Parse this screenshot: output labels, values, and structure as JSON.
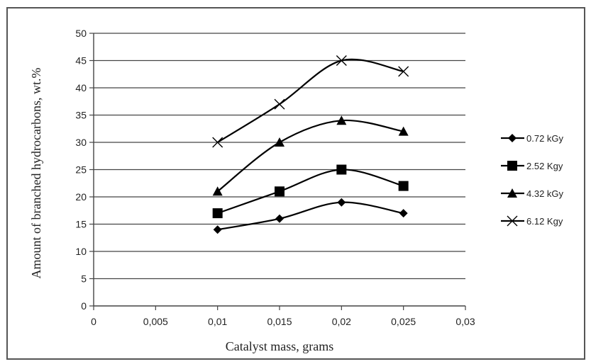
{
  "chart_data": {
    "type": "line",
    "title": "",
    "xlabel": "Catalyst mass, grams",
    "ylabel": "Amount of branched hydrocarbons, wt.%",
    "xlim": [
      0,
      0.03
    ],
    "ylim": [
      0,
      50
    ],
    "x_ticks": [
      "0",
      "0,005",
      "0,01",
      "0,015",
      "0,02",
      "0,025",
      "0,03"
    ],
    "y_ticks": [
      "0",
      "5",
      "10",
      "15",
      "20",
      "25",
      "30",
      "35",
      "40",
      "45",
      "50"
    ],
    "grid": "horizontal",
    "legend_position": "right",
    "x": [
      0.01,
      0.015,
      0.02,
      0.025
    ],
    "series": [
      {
        "name": "0.72 kGy",
        "marker": "diamond",
        "values": [
          14,
          16,
          19,
          17
        ]
      },
      {
        "name": "2.52 Kgy",
        "marker": "square",
        "values": [
          17,
          21,
          25,
          22
        ]
      },
      {
        "name": "4.32 kGy",
        "marker": "triangle",
        "values": [
          21,
          30,
          34,
          32
        ]
      },
      {
        "name": "6.12 Kgy",
        "marker": "x",
        "values": [
          30,
          37,
          45,
          43
        ]
      }
    ],
    "line_color": "#000000"
  }
}
